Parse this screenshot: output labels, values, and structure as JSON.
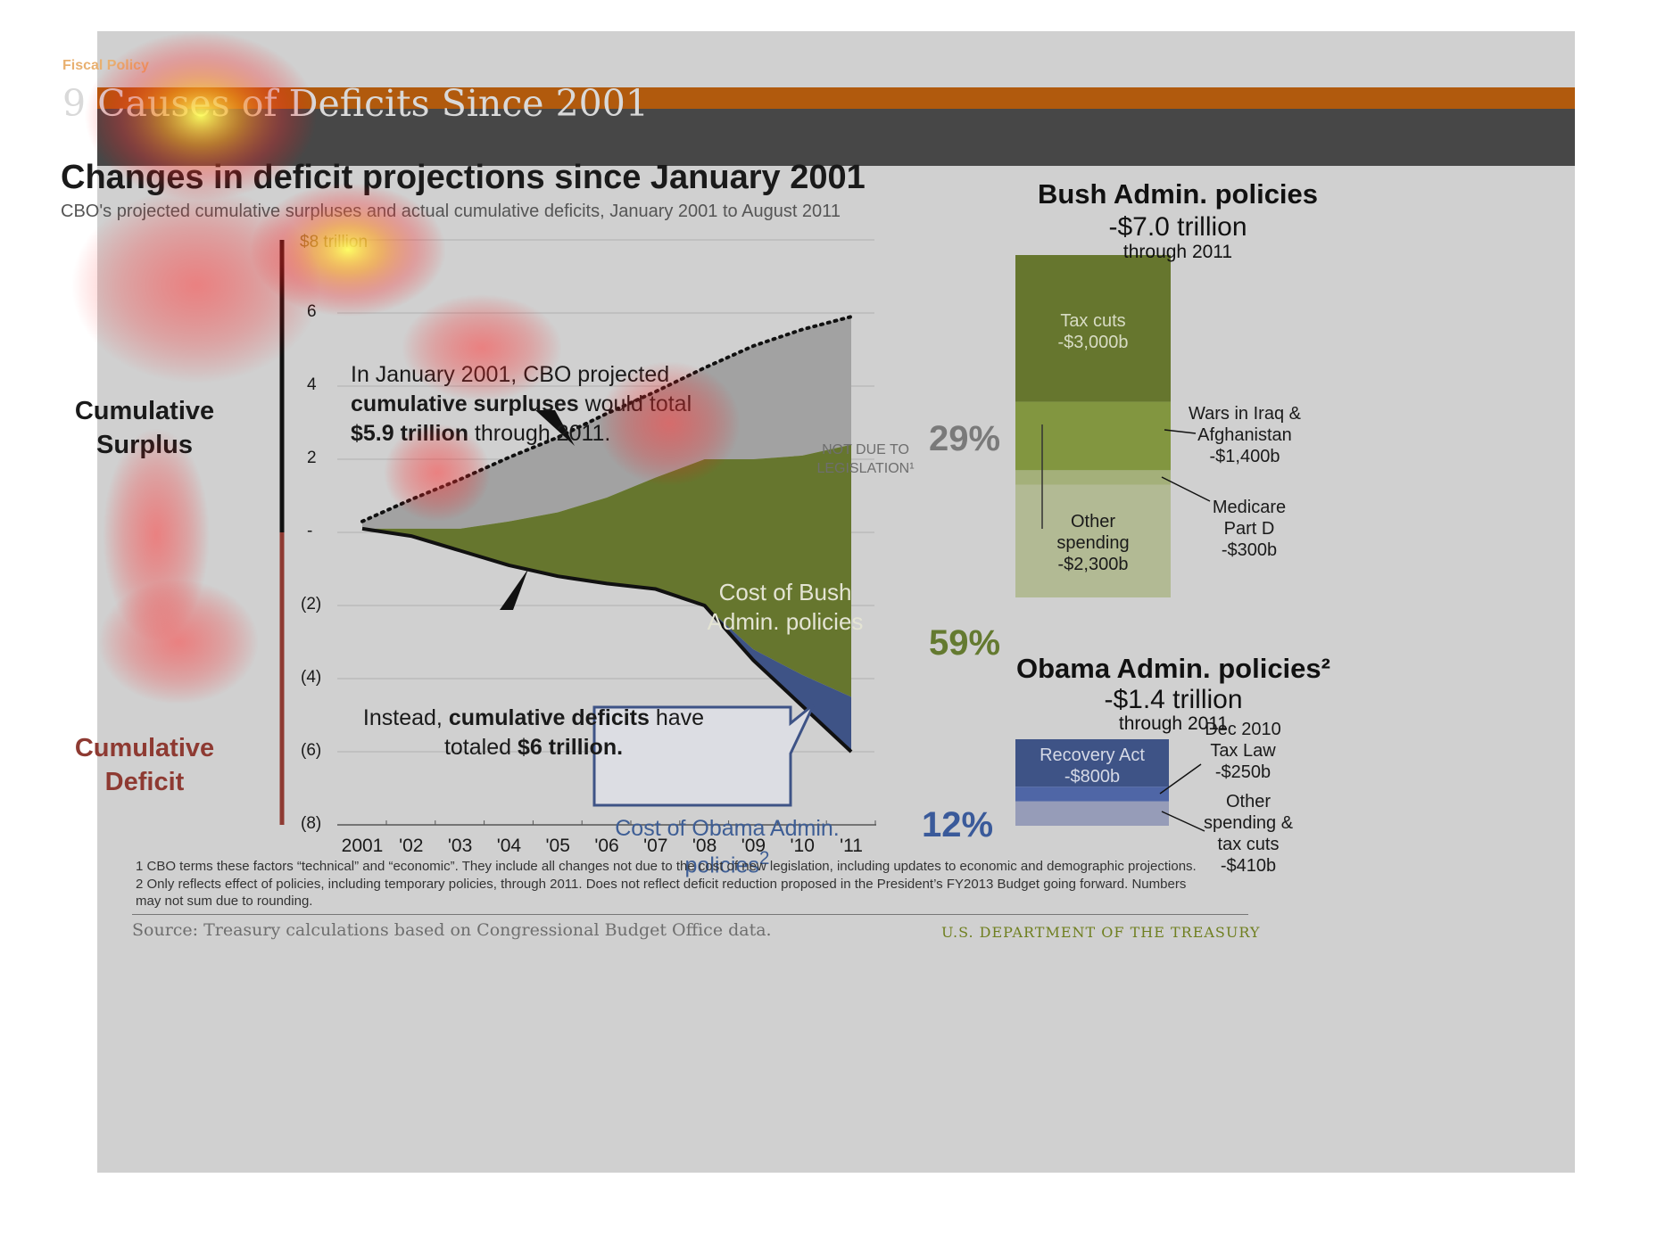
{
  "header": {
    "kicker": "Fiscal Policy",
    "slide_title": "9 Causes of Deficits Since 2001",
    "bar_color": "#b15a0d"
  },
  "chart": {
    "title": "Changes in deficit projections since January 2001",
    "subtitle": "CBO's projected cumulative surpluses and actual cumulative deficits, January 2001 to August 2011",
    "y_unit_label": "$8 trillion",
    "y_ticks": [
      "6",
      "4",
      "2",
      "-",
      "(2)",
      "(4)",
      "(6)",
      "(8)"
    ],
    "x_ticks": [
      "2001",
      "'02",
      "'03",
      "'04",
      "'05",
      "'06",
      "'07",
      "'08",
      "'09",
      "'10",
      "'11"
    ],
    "surplus_label": "Cumulative Surplus",
    "deficit_label": "Cumulative Deficit",
    "annotation_surplus_html": "In January 2001, CBO projected <b>cumulative surpluses</b> would total <b>$5.9 trillion</b> through 2011.",
    "annotation_deficit_html": "Instead, <b>cumulative deficits</b> have totaled <b>$6 trillion.</b>",
    "not_due_label": "NOT DUE TO LEGISLATION¹",
    "bush_cost_label": "Cost of Bush Admin. policies",
    "obama_cost_label_html": "Cost of Obama Admin. policies<sup>2</sup>",
    "pct_not_legislation": "29%",
    "pct_bush": "59%",
    "pct_obama": "12%"
  },
  "chart_data": {
    "type": "area",
    "x": [
      "2001",
      "'02",
      "'03",
      "'04",
      "'05",
      "'06",
      "'07",
      "'08",
      "'09",
      "'10",
      "'11"
    ],
    "ylabel": "$ trillion",
    "ylim": [
      -8,
      8
    ],
    "series": [
      {
        "name": "CBO projected cumulative surpluses",
        "values": [
          0.3,
          0.9,
          1.45,
          2.05,
          2.6,
          3.25,
          3.85,
          4.5,
          5.1,
          5.55,
          5.9
        ]
      },
      {
        "name": "Cumulative deficits",
        "values": [
          0.1,
          -0.1,
          -0.5,
          -0.9,
          -1.2,
          -1.4,
          -1.55,
          -2.0,
          -3.5,
          -4.75,
          -6.0
        ]
      },
      {
        "name": "NOT DUE TO LEGISLATION",
        "values": [
          0.1,
          0.1,
          0.1,
          0.3,
          0.55,
          0.95,
          1.5,
          2.0,
          2.0,
          2.1,
          2.4
        ]
      },
      {
        "name": "Cost of Bush Admin. policies",
        "values": [
          0.1,
          -0.1,
          -0.5,
          -0.9,
          -1.2,
          -1.4,
          -1.55,
          -2.0,
          -3.2,
          -3.9,
          -4.5
        ]
      }
    ],
    "shares": {
      "not_due_to_legislation": 29,
      "bush_policies": 59,
      "obama_policies": 12
    },
    "stacked_bars": [
      {
        "title": "Bush Admin. policies",
        "total": "-$7.0 trillion",
        "period": "through 2011",
        "segments": [
          {
            "name": "Tax cuts",
            "value": 3000
          },
          {
            "name": "Wars in Iraq & Afghanistan",
            "value": 1400
          },
          {
            "name": "Medicare Part D",
            "value": 300
          },
          {
            "name": "Other spending",
            "value": 2300
          }
        ]
      },
      {
        "title": "Obama Admin. policies",
        "total": "-$1.4 trillion",
        "period": "through 2011",
        "segments": [
          {
            "name": "Recovery Act",
            "value": 800
          },
          {
            "name": "Dec 2010 Tax Law",
            "value": 250
          },
          {
            "name": "Other spending & tax cuts",
            "value": 410
          }
        ]
      }
    ]
  },
  "bush_panel": {
    "heading": "Bush Admin. policies",
    "total": "-$7.0 trillion",
    "through": "through 2011",
    "tax_cuts_label": "Tax cuts",
    "tax_cuts_value": "-$3,000b",
    "wars_label": "Wars in Iraq  & Afghanistan",
    "wars_value": "-$1,400b",
    "medicare_label": "Medicare Part D",
    "medicare_value": "-$300b",
    "other_label": "Other spending",
    "other_value": "-$2,300b",
    "colors": {
      "tax_cuts": "#66762e",
      "wars": "#829640",
      "medicare": "#a4b07a",
      "other": "#b2ba94"
    }
  },
  "obama_panel": {
    "heading": "Obama Admin. policies²",
    "total": "-$1.4 trillion",
    "through": "through 2011",
    "recovery_label": "Recovery Act",
    "recovery_value": "-$800b",
    "taxlaw_label": "Dec 2010 Tax Law",
    "taxlaw_value": "-$250b",
    "other_label": "Other spending & tax cuts",
    "other_value": "-$410b",
    "colors": {
      "recovery": "#3e5386",
      "taxlaw": "#4f66a6",
      "other": "#969cb8"
    }
  },
  "footer": {
    "footnote_1": "1 CBO terms these factors “technical” and “economic”. They include all changes not due to the cost of new legislation, including updates to economic and demographic projections.",
    "footnote_2": "2 Only reflects effect of policies, including temporary policies, through 2011. Does not reflect deficit reduction proposed in the President’s FY2013 Budget going forward. Numbers may not sum due to rounding.",
    "source": "Source: Treasury calculations based on Congressional Budget Office data.",
    "department": "U.S. DEPARTMENT OF THE TREASURY"
  }
}
